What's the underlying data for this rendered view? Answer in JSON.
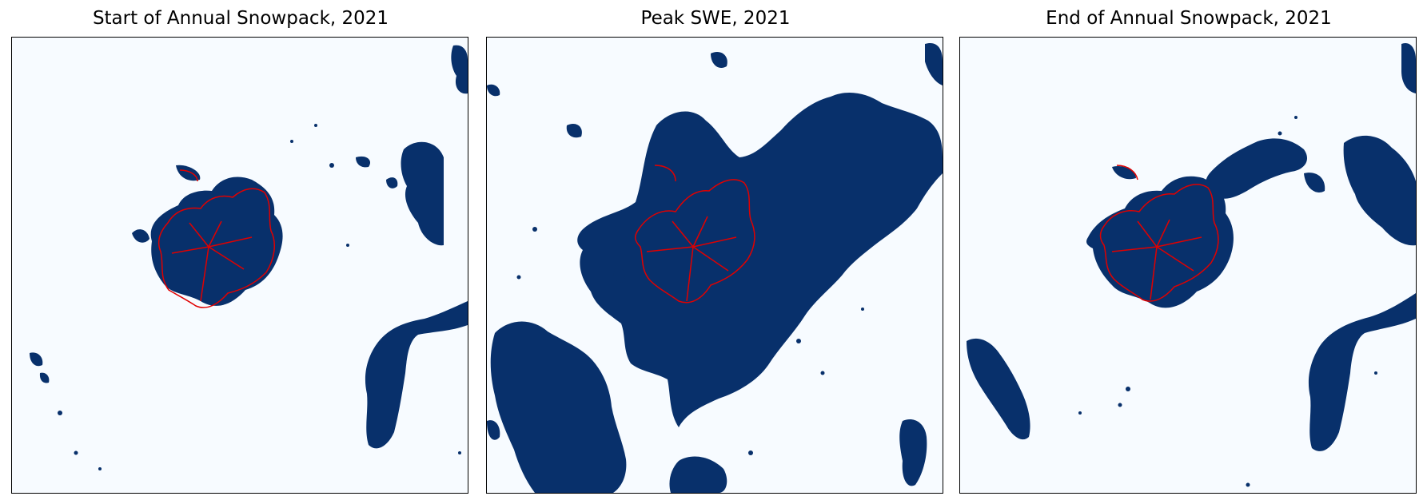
{
  "figure": {
    "colors": {
      "snow": "#08306b",
      "background": "#f7fbff",
      "glacier_outline": "#e00000",
      "frame": "#000000"
    },
    "panels": [
      {
        "title": "Start of Annual Snowpack, 2021",
        "view": "start"
      },
      {
        "title": "Peak SWE, 2021",
        "view": "peak"
      },
      {
        "title": "End of Annual Snowpack, 2021",
        "view": "end"
      }
    ]
  }
}
